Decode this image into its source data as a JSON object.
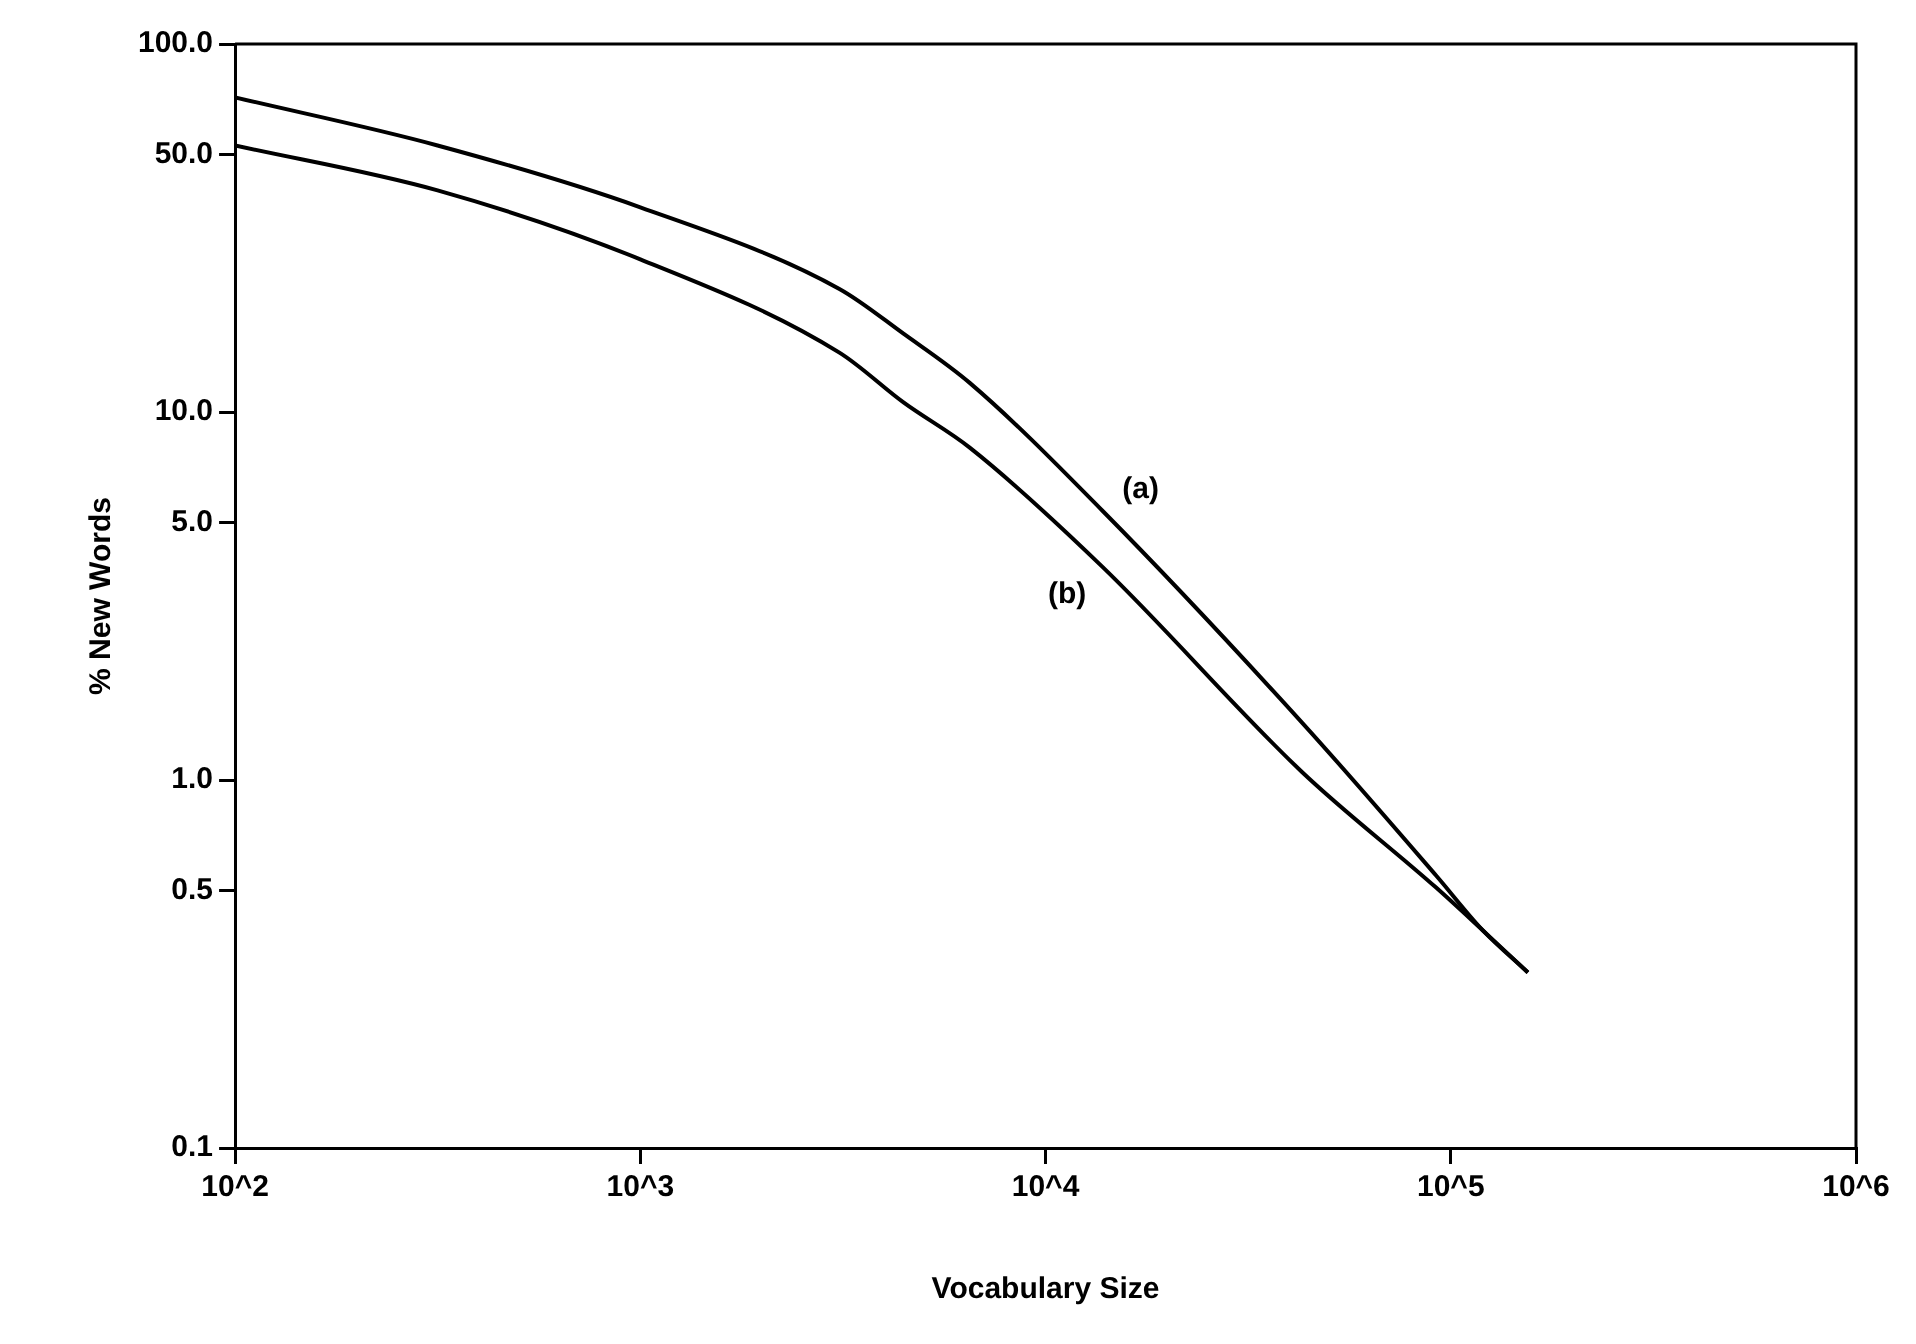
{
  "chart_data": {
    "type": "line",
    "xlabel": "Vocabulary Size",
    "ylabel": "% New Words",
    "log": "xy",
    "grid": false,
    "legend": false,
    "marker": "none",
    "line_style": "solid",
    "xlim": [
      100,
      1000000
    ],
    "ylim": [
      0.1,
      100
    ],
    "xticks": [
      {
        "value": 100,
        "label": "10^2"
      },
      {
        "value": 1000,
        "label": "10^3"
      },
      {
        "value": 10000,
        "label": "10^4"
      },
      {
        "value": 100000,
        "label": "10^5"
      },
      {
        "value": 1000000,
        "label": "10^6"
      }
    ],
    "yticks": [
      {
        "value": 0.1,
        "label": "0.1"
      },
      {
        "value": 0.5,
        "label": "0.5"
      },
      {
        "value": 1,
        "label": "1.0"
      },
      {
        "value": 5,
        "label": "5.0"
      },
      {
        "value": 10,
        "label": "10.0"
      },
      {
        "value": 50,
        "label": "50.0"
      },
      {
        "value": 100,
        "label": "100.0"
      }
    ],
    "series": [
      {
        "name": "(a)",
        "color": "#000000",
        "x": [
          100,
          316,
          1000,
          3100,
          4470,
          6500,
          13800,
          43000,
          92000,
          120000,
          155000
        ],
        "values": [
          71.6,
          53,
          36,
          21.6,
          16.3,
          12,
          5.4,
          1.43,
          0.55,
          0.39,
          0.3
        ]
      },
      {
        "name": "(b)",
        "color": "#000000",
        "x": [
          100,
          316,
          1000,
          3100,
          4470,
          6500,
          13800,
          43000,
          92000,
          120000,
          155000
        ],
        "values": [
          53,
          40,
          26,
          14.5,
          10.6,
          8,
          3.8,
          1.05,
          0.51,
          0.39,
          0.3
        ]
      }
    ]
  }
}
